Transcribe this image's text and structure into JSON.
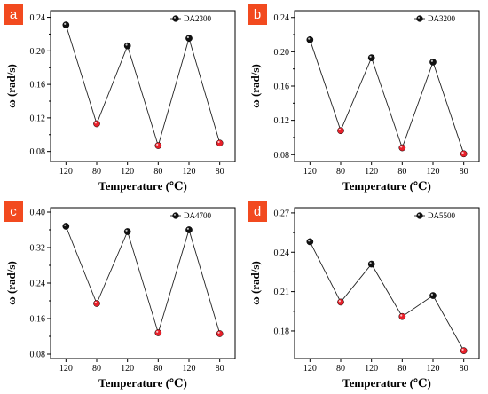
{
  "chart_data": [
    {
      "type": "line",
      "panel_label": "a",
      "series": [
        {
          "name": "DA2300",
          "values": [
            0.231,
            0.113,
            0.206,
            0.087,
            0.215,
            0.09
          ]
        }
      ],
      "categories": [
        "120",
        "80",
        "120",
        "80",
        "120",
        "80"
      ],
      "point_colors": [
        "black",
        "red",
        "black",
        "red",
        "black",
        "red"
      ],
      "xlabel": "Temperature (℃)",
      "ylabel": "ω (rad/s)",
      "ylim": [
        0.068,
        0.248
      ],
      "yticks": [
        0.08,
        0.12,
        0.16,
        0.2,
        0.24
      ],
      "ytick_labels": [
        "0.08",
        "0.12",
        "0.16",
        "0.20",
        "0.24"
      ],
      "grid": false,
      "legend": "top-right"
    },
    {
      "type": "line",
      "panel_label": "b",
      "series": [
        {
          "name": "DA3200",
          "values": [
            0.214,
            0.108,
            0.193,
            0.088,
            0.188,
            0.081
          ]
        }
      ],
      "categories": [
        "120",
        "80",
        "120",
        "80",
        "120",
        "80"
      ],
      "point_colors": [
        "black",
        "red",
        "black",
        "red",
        "black",
        "red"
      ],
      "xlabel": "Temperature (℃)",
      "ylabel": "ω (rad/s)",
      "ylim": [
        0.072,
        0.248
      ],
      "yticks": [
        0.08,
        0.12,
        0.16,
        0.2,
        0.24
      ],
      "ytick_labels": [
        "0.08",
        "0.12",
        "0.16",
        "0.20",
        "0.24"
      ],
      "grid": false,
      "legend": "top-right"
    },
    {
      "type": "line",
      "panel_label": "c",
      "series": [
        {
          "name": "DA4700",
          "values": [
            0.368,
            0.194,
            0.356,
            0.128,
            0.36,
            0.126
          ]
        }
      ],
      "categories": [
        "120",
        "80",
        "120",
        "80",
        "120",
        "80"
      ],
      "point_colors": [
        "black",
        "red",
        "black",
        "red",
        "black",
        "red"
      ],
      "xlabel": "Temperature (℃)",
      "ylabel": "ω (rad/s)",
      "ylim": [
        0.07,
        0.41
      ],
      "yticks": [
        0.08,
        0.16,
        0.24,
        0.32,
        0.4
      ],
      "ytick_labels": [
        "0.08",
        "0.16",
        "0.24",
        "0.32",
        "0.40"
      ],
      "grid": false,
      "legend": "top-right"
    },
    {
      "type": "line",
      "panel_label": "d",
      "series": [
        {
          "name": "DA5500",
          "values": [
            0.248,
            0.202,
            0.231,
            0.191,
            0.207,
            0.165
          ]
        }
      ],
      "categories": [
        "120",
        "80",
        "120",
        "80",
        "120",
        "80"
      ],
      "point_colors": [
        "black",
        "red",
        "black",
        "red",
        "black",
        "red"
      ],
      "xlabel": "Temperature (℃)",
      "ylabel": "ω (rad/s)",
      "ylim": [
        0.159,
        0.274
      ],
      "yticks": [
        0.18,
        0.21,
        0.24,
        0.27
      ],
      "ytick_labels": [
        "0.18",
        "0.21",
        "0.24",
        "0.27"
      ],
      "grid": false,
      "legend": "top-right"
    }
  ]
}
